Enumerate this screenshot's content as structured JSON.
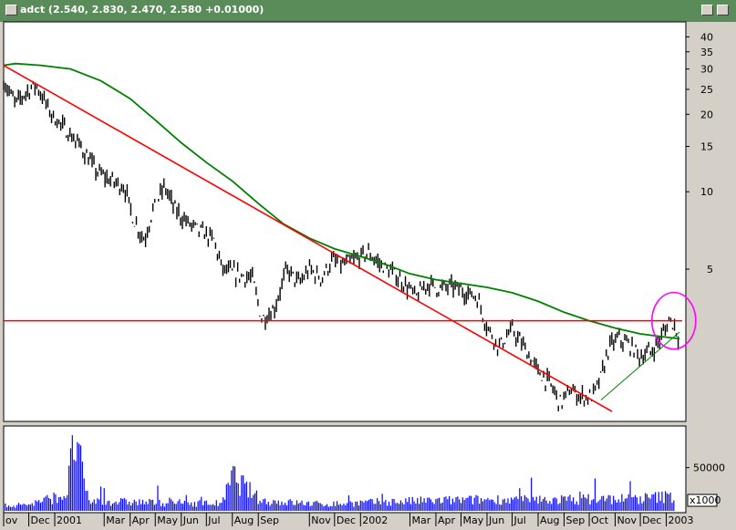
{
  "window": {
    "symbol": "adct",
    "quote": "(2.540, 2.830, 2.470, 2.580 +0.01000)"
  },
  "chart_data": [
    {
      "type": "candlestick",
      "title": "adct (2.540, 2.830, 2.470, 2.580 +0.01000)",
      "y_scale": "log",
      "ylim": [
        1.3,
        45
      ],
      "y_ticks": [
        "40",
        "35",
        "30",
        "25",
        "20",
        "15",
        "10",
        "5"
      ],
      "x_labels": [
        "ov",
        "Dec",
        "2001",
        "Mar",
        "Apr",
        "May",
        "Jun",
        "Jul",
        "Aug",
        "Sep",
        "Nov",
        "Dec",
        "2002",
        "Mar",
        "Apr",
        "May",
        "Jun",
        "Jul",
        "Aug",
        "Sep",
        "Oct",
        "Nov",
        "Dec",
        "2003"
      ],
      "x_months": [
        "2000-11",
        "2000-12",
        "2001-01",
        "2001-03",
        "2001-04",
        "2001-05",
        "2001-06",
        "2001-07",
        "2001-08",
        "2001-09",
        "2001-11",
        "2001-12",
        "2002-01",
        "2002-03",
        "2002-04",
        "2002-05",
        "2002-06",
        "2002-07",
        "2002-08",
        "2002-09",
        "2002-10",
        "2002-11",
        "2002-12",
        "2003-01"
      ],
      "price_close_path": [
        [
          "2000-11-01",
          27
        ],
        [
          "2000-11-15",
          22
        ],
        [
          "2000-12-01",
          25
        ],
        [
          "2000-12-10",
          26
        ],
        [
          "2000-12-28",
          20
        ],
        [
          "2001-01-10",
          18
        ],
        [
          "2001-02-01",
          15
        ],
        [
          "2001-02-20",
          12
        ],
        [
          "2001-03-10",
          11
        ],
        [
          "2001-03-25",
          10.5
        ],
        [
          "2001-04-05",
          7.8
        ],
        [
          "2001-04-18",
          6.5
        ],
        [
          "2001-04-28",
          8.5
        ],
        [
          "2001-05-12",
          10.5
        ],
        [
          "2001-05-25",
          8.5
        ],
        [
          "2001-06-10",
          7.5
        ],
        [
          "2001-06-25",
          7
        ],
        [
          "2001-07-10",
          6.5
        ],
        [
          "2001-07-20",
          5
        ],
        [
          "2001-08-05",
          4.8
        ],
        [
          "2001-08-25",
          4.6
        ],
        [
          "2001-09-05",
          3.2
        ],
        [
          "2001-09-20",
          3.5
        ],
        [
          "2001-10-05",
          5
        ],
        [
          "2001-10-20",
          4.4
        ],
        [
          "2001-11-01",
          5
        ],
        [
          "2001-11-15",
          4.6
        ],
        [
          "2001-11-28",
          5.4
        ],
        [
          "2001-12-12",
          5.2
        ],
        [
          "2001-12-28",
          5.5
        ],
        [
          "2002-01-10",
          5.8
        ],
        [
          "2002-01-25",
          5.2
        ],
        [
          "2002-02-10",
          4.8
        ],
        [
          "2002-02-25",
          4.3
        ],
        [
          "2002-03-08",
          3.9
        ],
        [
          "2002-03-22",
          4.4
        ],
        [
          "2002-04-05",
          4.2
        ],
        [
          "2002-04-20",
          4.3
        ],
        [
          "2002-05-05",
          4.1
        ],
        [
          "2002-05-20",
          3.9
        ],
        [
          "2002-06-01",
          3
        ],
        [
          "2002-06-15",
          2.5
        ],
        [
          "2002-07-01",
          2.9
        ],
        [
          "2002-07-15",
          2.5
        ],
        [
          "2002-08-01",
          2
        ],
        [
          "2002-08-15",
          1.8
        ],
        [
          "2002-08-28",
          1.5
        ],
        [
          "2002-09-08",
          1.7
        ],
        [
          "2002-09-20",
          1.6
        ],
        [
          "2002-10-05",
          1.6
        ],
        [
          "2002-10-15",
          1.9
        ],
        [
          "2002-10-25",
          2.5
        ],
        [
          "2002-11-05",
          2.7
        ],
        [
          "2002-11-20",
          2.5
        ],
        [
          "2002-12-01",
          2.3
        ],
        [
          "2002-12-15",
          2.4
        ],
        [
          "2002-12-28",
          2.8
        ],
        [
          "2003-01-05",
          3.2
        ],
        [
          "2003-01-12",
          3
        ],
        [
          "2003-01-17",
          2.58
        ]
      ],
      "moving_average": [
        [
          "2000-11-01",
          31
        ],
        [
          "2000-11-15",
          31.5
        ],
        [
          "2000-12-15",
          31
        ],
        [
          "2001-01-20",
          30
        ],
        [
          "2001-02-25",
          27
        ],
        [
          "2001-04-01",
          23
        ],
        [
          "2001-05-01",
          19
        ],
        [
          "2001-06-01",
          15.5
        ],
        [
          "2001-07-01",
          13
        ],
        [
          "2001-08-01",
          11
        ],
        [
          "2001-09-01",
          9
        ],
        [
          "2001-10-01",
          7.5
        ],
        [
          "2001-11-01",
          6.6
        ],
        [
          "2001-12-01",
          6
        ],
        [
          "2002-01-01",
          5.6
        ],
        [
          "2002-02-01",
          5.2
        ],
        [
          "2002-03-01",
          4.8
        ],
        [
          "2002-04-01",
          4.55
        ],
        [
          "2002-05-01",
          4.4
        ],
        [
          "2002-06-01",
          4.25
        ],
        [
          "2002-07-01",
          4.05
        ],
        [
          "2002-08-01",
          3.75
        ],
        [
          "2002-09-01",
          3.4
        ],
        [
          "2002-10-01",
          3.15
        ],
        [
          "2002-11-01",
          2.95
        ],
        [
          "2002-12-01",
          2.8
        ],
        [
          "2003-01-01",
          2.72
        ],
        [
          "2003-01-17",
          2.68
        ]
      ],
      "trendlines": [
        {
          "name": "downtrend",
          "color": "#ff0000",
          "from": [
            "2000-11-01",
            31
          ],
          "to": [
            "2002-10-28",
            1.4
          ]
        },
        {
          "name": "horizontal",
          "color": "#ff0000",
          "from": [
            "2000-11-01",
            3.15
          ],
          "to": [
            "2003-01-20",
            3.15
          ]
        },
        {
          "name": "uptrend",
          "color": "#008000",
          "from": [
            "2002-10-15",
            1.55
          ],
          "to": [
            "2003-01-17",
            2.85
          ]
        }
      ],
      "highlight": {
        "color": "#ff00ff",
        "center": [
          "2003-01-10",
          3.15
        ]
      }
    },
    {
      "type": "bar",
      "y_ticks": [
        "50000"
      ],
      "ylim": [
        0,
        95000
      ],
      "y_multiplier": "x1000",
      "volume_path": [
        [
          "2000-11-01",
          6000
        ],
        [
          "2000-12-01",
          8000
        ],
        [
          "2001-01-15",
          20000
        ],
        [
          "2001-01-25",
          88000
        ],
        [
          "2001-02-10",
          12000
        ],
        [
          "2001-05-01",
          10000
        ],
        [
          "2001-07-20",
          9000
        ],
        [
          "2001-08-01",
          42000
        ],
        [
          "2001-09-05",
          12000
        ],
        [
          "2001-11-20",
          8000
        ],
        [
          "2002-02-01",
          11000
        ],
        [
          "2002-06-15",
          14000
        ],
        [
          "2002-07-10",
          13000
        ],
        [
          "2002-12-01",
          15000
        ],
        [
          "2003-01-10",
          18000
        ]
      ]
    }
  ]
}
